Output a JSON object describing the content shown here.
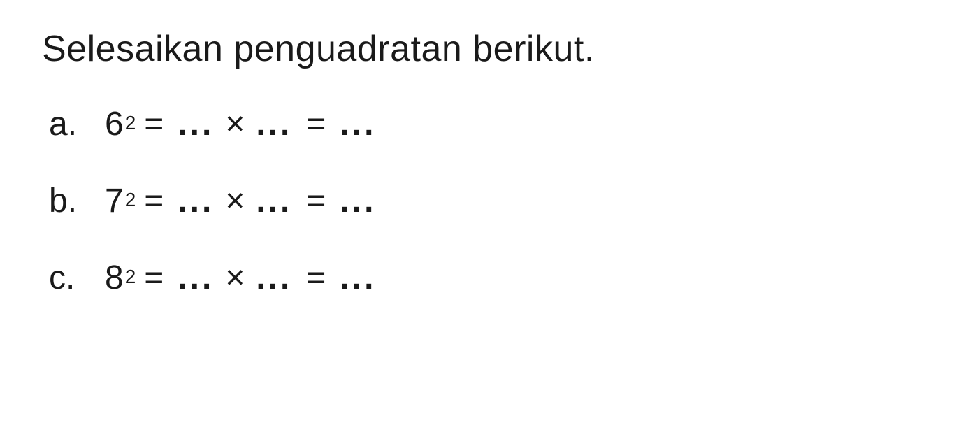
{
  "title": "Selesaikan penguadratan berikut.",
  "problems": [
    {
      "label": "a.",
      "base": "6",
      "exponent": "2",
      "eq1": "=",
      "blank1": "...",
      "op": "×",
      "blank2": "...",
      "eq2": "=",
      "blank3": "..."
    },
    {
      "label": "b.",
      "base": "7",
      "exponent": "2",
      "eq1": "=",
      "blank1": "...",
      "op": "×",
      "blank2": "...",
      "eq2": "=",
      "blank3": "..."
    },
    {
      "label": "c.",
      "base": "8",
      "exponent": "2",
      "eq1": "=",
      "blank1": "...",
      "op": "×",
      "blank2": "...",
      "eq2": "=",
      "blank3": "..."
    }
  ]
}
